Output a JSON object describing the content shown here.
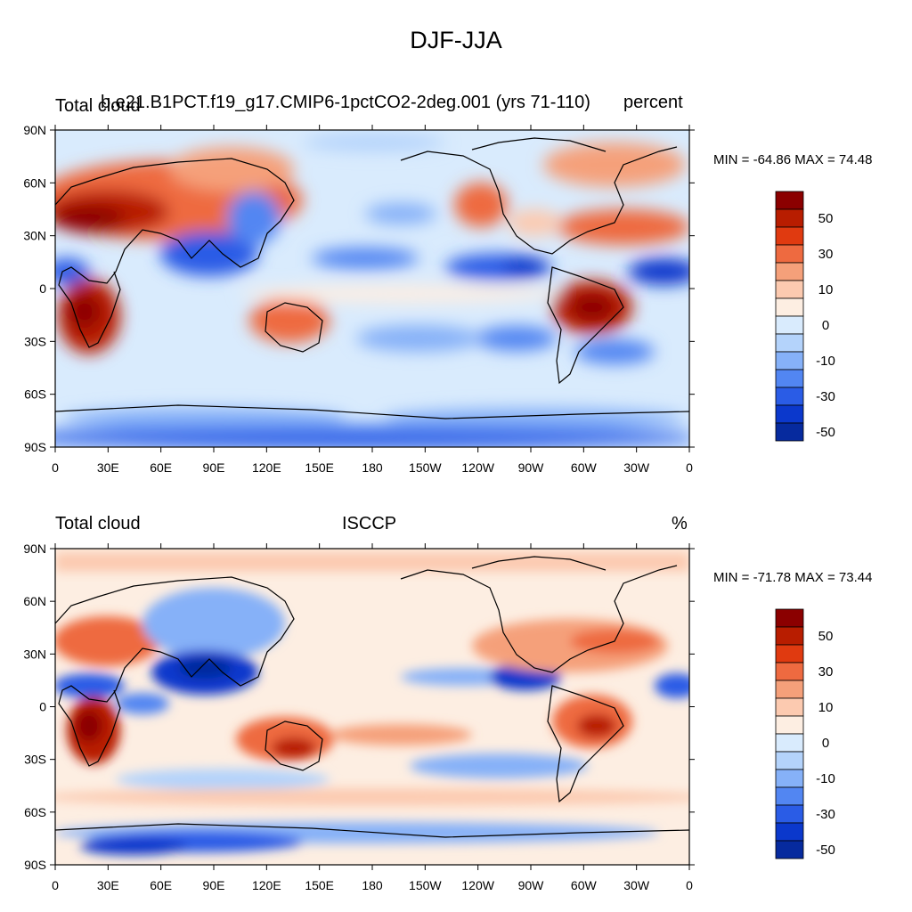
{
  "title": "DJF-JJA",
  "panels": [
    {
      "left_title": "Total cloud",
      "center_title": "b.e21.B1PCT.f19_g17.CMIP6-1pctCO2-2deg.001 (yrs 71-110)",
      "right_title": "percent",
      "stats": "MIN = -64.86 MAX =  74.48"
    },
    {
      "left_title": "Total cloud",
      "center_title": "ISCCP",
      "right_title": "%",
      "stats": "MIN = -71.78 MAX =  73.44"
    }
  ],
  "y_ticks": [
    "90N",
    "60N",
    "30N",
    "0",
    "30S",
    "60S",
    "90S"
  ],
  "x_ticks": [
    "0",
    "30E",
    "60E",
    "90E",
    "120E",
    "150E",
    "180",
    "150W",
    "120W",
    "90W",
    "60W",
    "30W",
    "0"
  ],
  "colorbar": {
    "labels": [
      "50",
      "30",
      "10",
      "0",
      "-10",
      "-30",
      "-50"
    ],
    "colors": [
      "#8b0000",
      "#b81d00",
      "#e03a10",
      "#ee6a40",
      "#f5a07a",
      "#fccab0",
      "#fdeee2",
      "#d9ebfd",
      "#b4d3fb",
      "#86b1f8",
      "#5286f2",
      "#2a5ce6",
      "#0b38cc",
      "#062a9e"
    ]
  }
}
